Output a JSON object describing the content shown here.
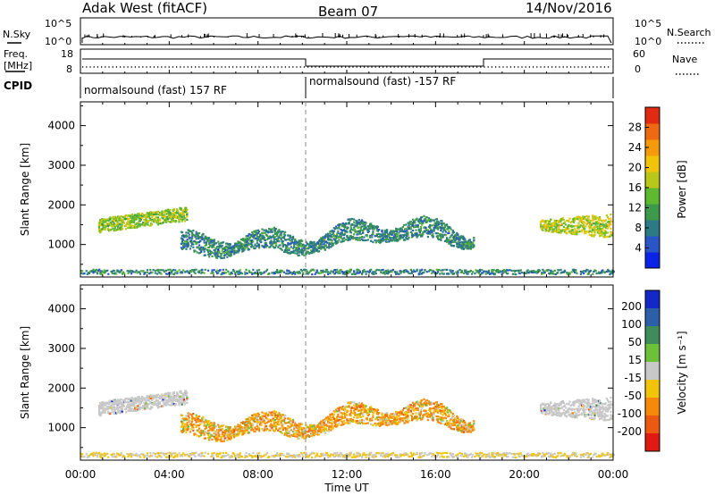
{
  "header": {
    "station": "Adak West (fitACF)",
    "beam": "Beam 07",
    "date": "14/Nov/2016"
  },
  "strips": {
    "nsky_label": "N.Sky",
    "nsky_ticks": [
      "10^5",
      "10^0"
    ],
    "nsearch_label": "N.Search",
    "nsearch_ticks": [
      "10^5",
      "10^0"
    ],
    "freq_label_1": "Freq.",
    "freq_label_2": "[MHz]",
    "freq_ticks": [
      "18",
      "8"
    ],
    "nave_label": "Nave",
    "nave_ticks": [
      "60",
      "0"
    ],
    "cpid_label": "CPID",
    "cpid_segments": [
      {
        "label": "normalsound (fast) 157 RF",
        "start_hour": 0,
        "end_hour": 10
      },
      {
        "label": "normalsound (fast) -157 RF",
        "start_hour": 10,
        "end_hour": 24
      }
    ]
  },
  "chart_data": [
    {
      "type": "heatmap",
      "name": "power",
      "ylabel": "Slant Range [km]",
      "xlim": [
        0,
        24
      ],
      "ylim": [
        180,
        4600
      ],
      "yticks": [
        1000,
        2000,
        3000,
        4000
      ],
      "colorbar": {
        "label": "Power [dB]",
        "ticks": [
          4,
          8,
          12,
          16,
          20,
          24,
          28
        ],
        "range": [
          0,
          32
        ],
        "colors": [
          "#0a23e6",
          "#2a55c6",
          "#2b7a85",
          "#3d9a4a",
          "#5fb930",
          "#b9c818",
          "#f2c409",
          "#f59a0a",
          "#ee6a12",
          "#e02a12"
        ]
      },
      "echo_regions": [
        {
          "t0": 0.8,
          "t1": 4.8,
          "range_center": [
            1500,
            1800
          ],
          "range_width": 350,
          "level": 16
        },
        {
          "t0": 4.5,
          "t1": 17.7,
          "range_center": [
            1000,
            1200
          ],
          "range_width": 450,
          "level": 9
        },
        {
          "t0": 20.7,
          "t1": 23.9,
          "range_center": [
            1500,
            1650
          ],
          "range_width": 450,
          "level": 18
        },
        {
          "t0": 0.0,
          "t1": 24.0,
          "range_center": [
            330,
            330
          ],
          "range_width": 120,
          "level": 6
        }
      ]
    },
    {
      "type": "heatmap",
      "name": "velocity",
      "ylabel": "Slant Range [km]",
      "xlabel": "Time UT",
      "xlim": [
        0,
        24
      ],
      "ylim": [
        180,
        4600
      ],
      "xticks": [
        "00:00",
        "04:00",
        "08:00",
        "12:00",
        "16:00",
        "20:00",
        "00:00"
      ],
      "yticks": [
        1000,
        2000,
        3000,
        4000
      ],
      "colorbar": {
        "label": "Velocity [m s⁻¹]",
        "ticks": [
          "200",
          "100",
          "50",
          "15",
          "-15",
          "-50",
          "-100",
          "-200"
        ],
        "colors": [
          "#1428c8",
          "#2d5fa8",
          "#3f8c5a",
          "#6cc03a",
          "#c8c8c8",
          "#f2c409",
          "#f58a0a",
          "#ec5a12",
          "#e01a12"
        ]
      },
      "echo_regions": [
        {
          "t0": 0.8,
          "t1": 4.8,
          "range_center": [
            1500,
            1800
          ],
          "range_width": 350,
          "velocity_class": "ground-scatter"
        },
        {
          "t0": 4.5,
          "t1": 17.7,
          "range_center": [
            1000,
            1200
          ],
          "range_width": 450,
          "velocity_class": "-50"
        },
        {
          "t0": 20.7,
          "t1": 23.9,
          "range_center": [
            1500,
            1650
          ],
          "range_width": 450,
          "velocity_class": "ground-scatter"
        }
      ]
    }
  ]
}
